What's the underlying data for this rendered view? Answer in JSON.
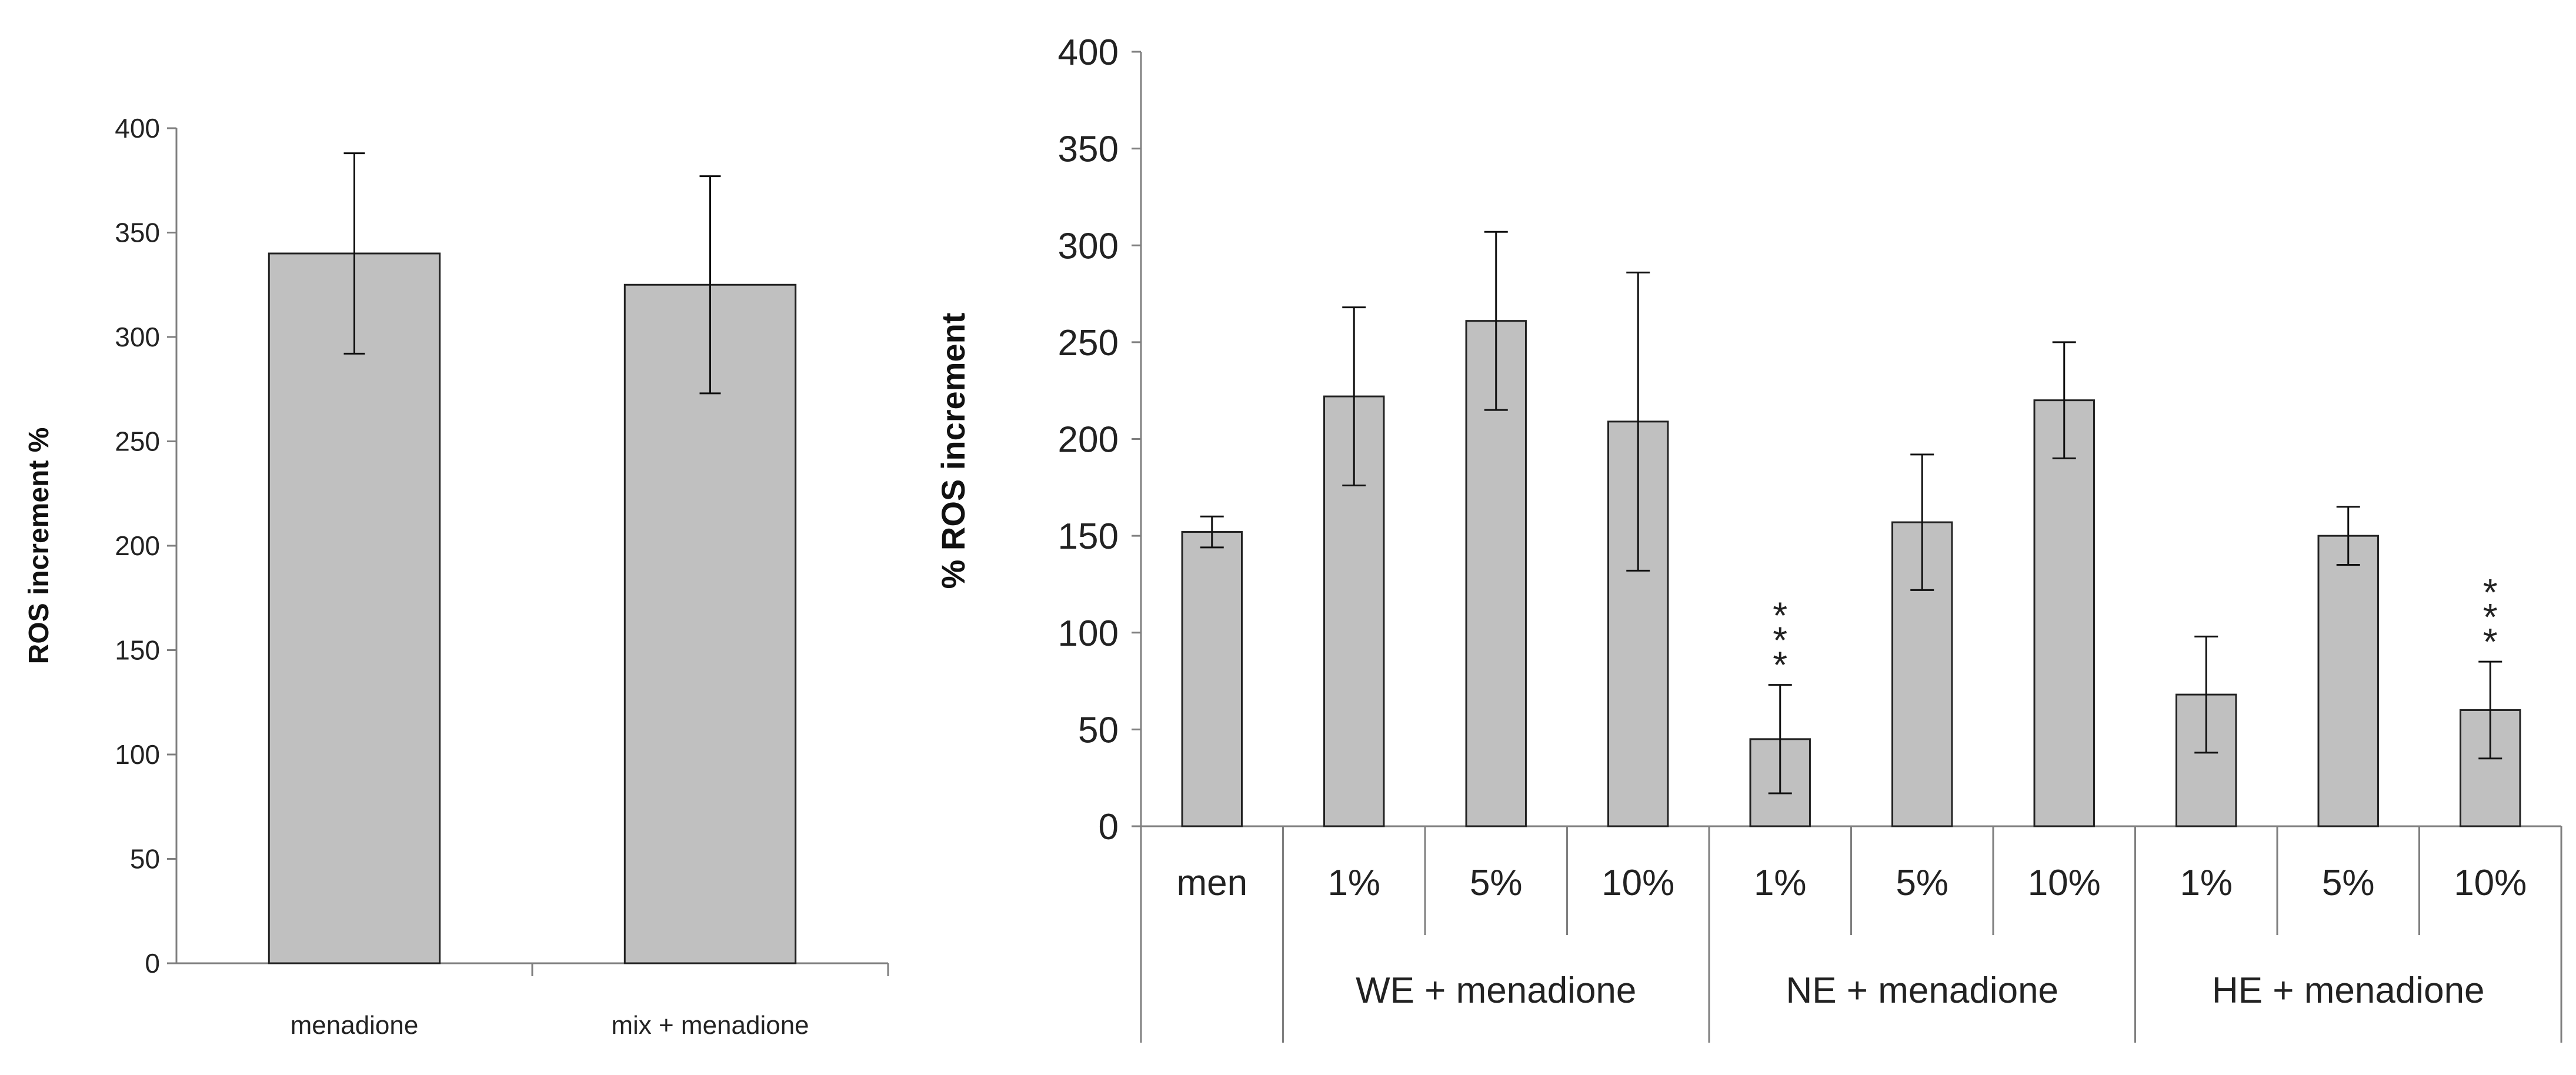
{
  "chart_data": [
    {
      "type": "bar",
      "title": "",
      "xlabel": "",
      "ylabel": "ROS increment %",
      "ylim": [
        0,
        400
      ],
      "yticks": [
        0,
        50,
        100,
        150,
        200,
        250,
        300,
        350,
        400
      ],
      "grid": false,
      "categories": [
        "menadione",
        "mix + menadione"
      ],
      "values": [
        340,
        325
      ],
      "errors": [
        48,
        52
      ],
      "bar_color": "#c0c0c0"
    },
    {
      "type": "bar",
      "title": "",
      "xlabel": "",
      "ylabel": "% ROS increment",
      "ylim": [
        0,
        400
      ],
      "yticks": [
        0,
        50,
        100,
        150,
        200,
        250,
        300,
        350,
        400
      ],
      "grid": false,
      "categories": [
        "men",
        "1%",
        "5%",
        "10%",
        "1%",
        "5%",
        "10%",
        "1%",
        "5%",
        "10%"
      ],
      "groups": [
        {
          "label": "",
          "span": 1
        },
        {
          "label": "WE + menadione",
          "span": 3
        },
        {
          "label": "NE + menadione",
          "span": 3
        },
        {
          "label": "HE + menadione",
          "span": 3
        }
      ],
      "values": [
        152,
        222,
        261,
        209,
        45,
        157,
        220,
        68,
        150,
        60
      ],
      "errors": [
        8,
        46,
        46,
        77,
        28,
        35,
        30,
        30,
        15,
        25
      ],
      "annotations": [
        "",
        "",
        "",
        "",
        "***",
        "",
        "",
        "",
        "",
        "***"
      ],
      "bar_color": "#c0c0c0"
    }
  ]
}
